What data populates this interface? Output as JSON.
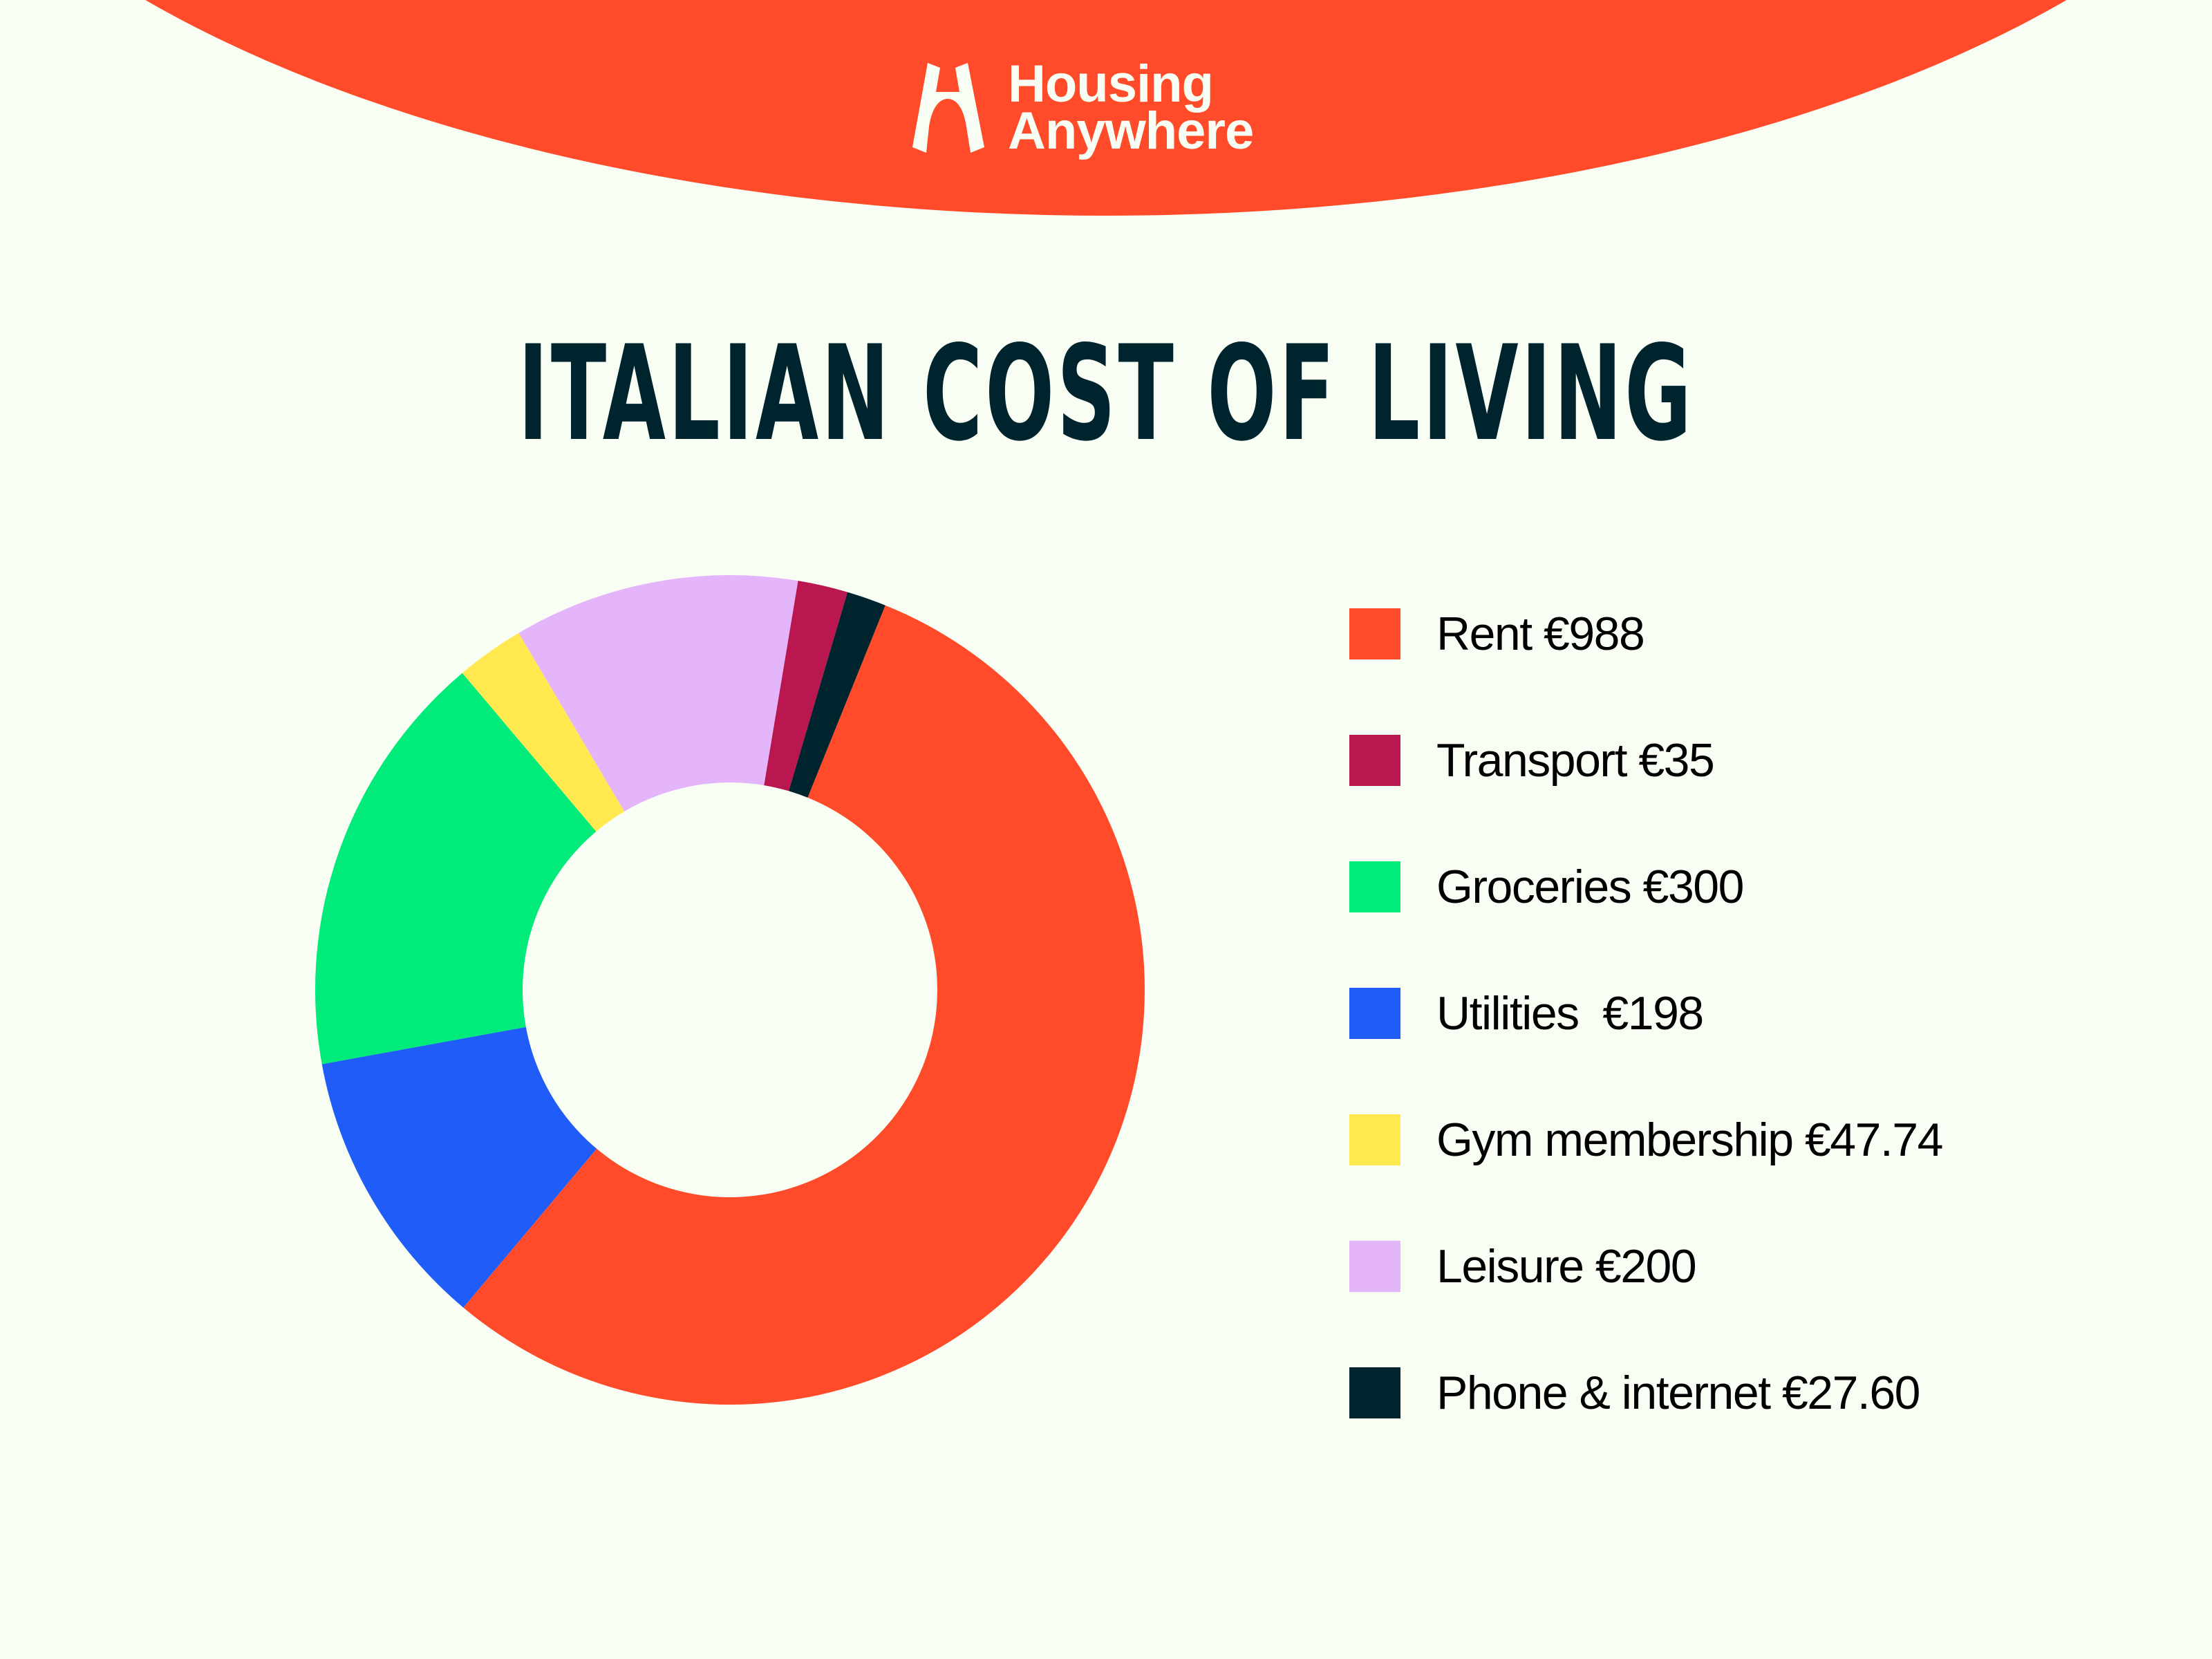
{
  "brand": {
    "name_line1": "Housing",
    "name_line2": "Anywhere",
    "logo_icon": "housing-anywhere-h-icon",
    "colors": {
      "header": "#FF4B29",
      "background": "#F8FEF3",
      "title": "#00242E"
    }
  },
  "title": "ITALIAN COST OF LIVING",
  "legend": [
    {
      "label": "Rent €988",
      "color": "#FF4B29"
    },
    {
      "label": "Transport €35",
      "color": "#BA1650"
    },
    {
      "label": "Groceries €300",
      "color": "#00EB7A"
    },
    {
      "label": "Utilities  €198",
      "color": "#1F5CF8"
    },
    {
      "label": "Gym membership €47.74",
      "color": "#FFE94F"
    },
    {
      "label": "Leisure €200",
      "color": "#E4B5FB"
    },
    {
      "label": "Phone & internet €27.60",
      "color": "#00242E"
    }
  ],
  "chart_data": {
    "type": "pie",
    "variant": "donut",
    "title": "ITALIAN COST OF LIVING",
    "currency": "EUR",
    "legend_position": "right",
    "categories": [
      "Rent",
      "Transport",
      "Groceries",
      "Utilities",
      "Gym membership",
      "Leisure",
      "Phone & internet"
    ],
    "values": [
      988,
      35,
      300,
      198,
      47.74,
      200,
      27.6
    ],
    "colors": [
      "#FF4B29",
      "#BA1650",
      "#00EB7A",
      "#1F5CF8",
      "#FFE94F",
      "#E4B5FB",
      "#00242E"
    ],
    "draw_order_clockwise": [
      "Rent",
      "Utilities",
      "Groceries",
      "Gym membership",
      "Leisure",
      "Transport",
      "Phone & internet"
    ],
    "start_angle_deg": 22,
    "total": 1796.34
  }
}
